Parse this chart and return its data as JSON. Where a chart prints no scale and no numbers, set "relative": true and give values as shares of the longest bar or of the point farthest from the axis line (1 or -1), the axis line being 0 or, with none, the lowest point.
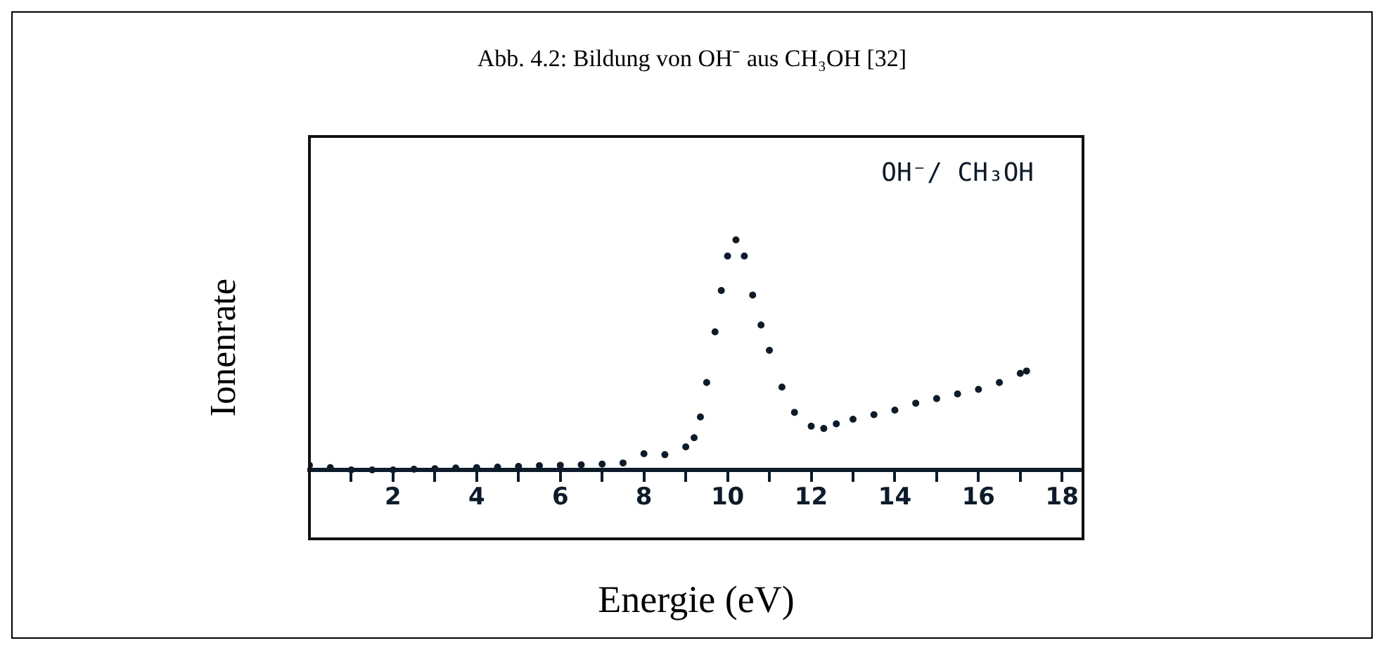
{
  "chart_data": {
    "type": "scatter",
    "title": "Abb. 4.2: Bildung von OH⁻ aus CH₃OH [32]",
    "xlabel": "Energie (eV)",
    "ylabel": "Ionenrate",
    "annotations": [
      "OH⁻/ CH₃OH"
    ],
    "relative": true,
    "marker": "circle",
    "grid": false,
    "legend": false,
    "xlim": [
      0,
      18.5
    ],
    "xticks": [
      {
        "value": 1,
        "label": null
      },
      2,
      {
        "value": 3,
        "label": null
      },
      4,
      {
        "value": 5,
        "label": null
      },
      6,
      {
        "value": 7,
        "label": null
      },
      8,
      {
        "value": 9,
        "label": null
      },
      10,
      {
        "value": 11,
        "label": null
      },
      12,
      {
        "value": 13,
        "label": null
      },
      14,
      {
        "value": 15,
        "label": null
      },
      16,
      {
        "value": 17,
        "label": null
      },
      18
    ],
    "series": [
      {
        "color": "#0d1b2a",
        "x": [
          0,
          0.5,
          1,
          1.5,
          2,
          2.5,
          3,
          3.5,
          4,
          4.5,
          5,
          5.5,
          6,
          6.5,
          7,
          7.5,
          8,
          8.5,
          9,
          9.2,
          9.35,
          9.5,
          9.7,
          9.85,
          10,
          10.2,
          10.4,
          10.6,
          10.8,
          11,
          11.3,
          11.6,
          12,
          12.3,
          12.6,
          13,
          13.5,
          14,
          14.5,
          15,
          15.5,
          16,
          16.5,
          17,
          17.15
        ],
        "values": [
          0.02,
          0.01,
          0,
          0,
          0,
          0.003,
          0.005,
          0.008,
          0.01,
          0.012,
          0.015,
          0.018,
          0.02,
          0.022,
          0.025,
          0.03,
          0.07,
          0.066,
          0.1,
          0.14,
          0.23,
          0.38,
          0.6,
          0.78,
          0.93,
          1,
          0.93,
          0.76,
          0.63,
          0.52,
          0.36,
          0.25,
          0.19,
          0.18,
          0.2,
          0.22,
          0.24,
          0.26,
          0.29,
          0.31,
          0.33,
          0.35,
          0.38,
          0.42,
          0.43
        ]
      }
    ]
  }
}
